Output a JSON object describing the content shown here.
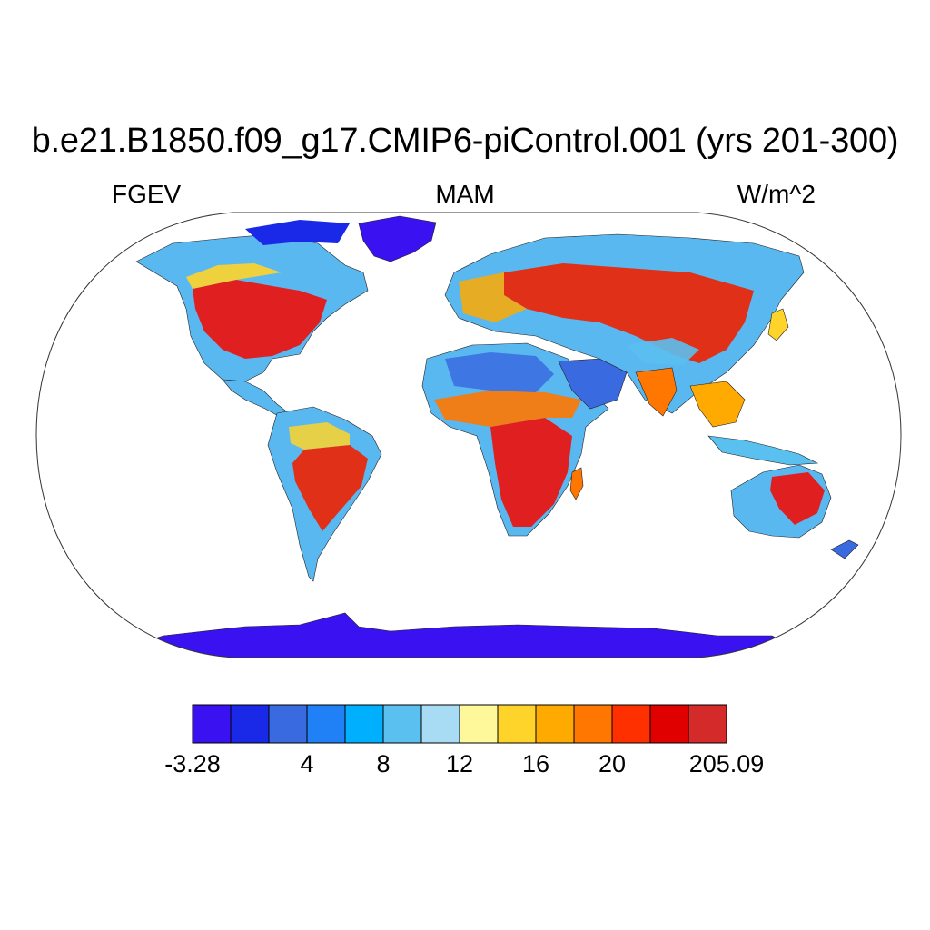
{
  "title": "b.e21.B1850.f09_g17.CMIP6-piControl.001 (yrs 201-300)",
  "variable": "FGEV",
  "season": "MAM",
  "units": "W/m^2",
  "colorbar": {
    "colors": [
      "#3a12f2",
      "#1a28e8",
      "#3a6ae0",
      "#2080f5",
      "#00b0ff",
      "#5ac0f0",
      "#a8dcf5",
      "#fff89a",
      "#ffd42a",
      "#ffaa00",
      "#ff7700",
      "#ff3000",
      "#e00000",
      "#d42a2a"
    ],
    "labels": [
      {
        "text": "-3.28",
        "boundary": 0
      },
      {
        "text": "4",
        "boundary": 3
      },
      {
        "text": "8",
        "boundary": 5
      },
      {
        "text": "12",
        "boundary": 7
      },
      {
        "text": "16",
        "boundary": 9
      },
      {
        "text": "20",
        "boundary": 11
      },
      {
        "text": "205.09",
        "boundary": 14
      }
    ]
  },
  "map": {
    "projection": "Robinson",
    "ocean_color": "#ffffff",
    "antarctica_color": "#3a12f2"
  }
}
